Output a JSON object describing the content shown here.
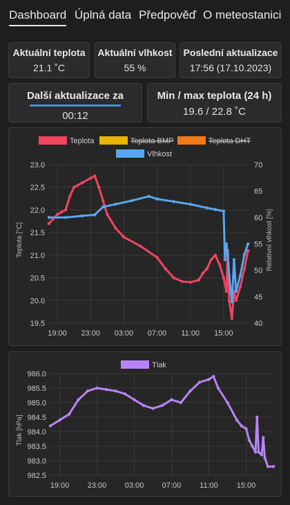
{
  "nav": {
    "tabs": [
      {
        "label": "Dashboard",
        "active": true
      },
      {
        "label": "Úplná data",
        "active": false
      },
      {
        "label": "Předpověď",
        "active": false
      },
      {
        "label": "O meteostanici",
        "active": false
      }
    ]
  },
  "cards": {
    "temp": {
      "title": "Aktuální teplota",
      "value": "21.1 ˚C"
    },
    "humidity": {
      "title": "Aktuální vlhkost",
      "value": "55 %"
    },
    "last_update": {
      "title": "Poslední aktualizace",
      "value": "17:56 (17.10.2023)"
    },
    "next_update": {
      "title": "Další aktualizace za",
      "value": "00:12",
      "progress": 1.0
    },
    "minmax": {
      "title": "Min / max teplota (24 h)",
      "value": "19.6 / 22.8 ˚C"
    }
  },
  "colors": {
    "teplota": "#f0455f",
    "teplota_bmp": "#e8b600",
    "teplota_dht": "#f07a1a",
    "vlhkost": "#5aa5f0",
    "tlak": "#b884f5",
    "progress": "#4a8fe0"
  },
  "chart_data": [
    {
      "type": "line",
      "legend": [
        {
          "name": "Teplota",
          "hidden": false
        },
        {
          "name": "Teplota BMP",
          "hidden": true
        },
        {
          "name": "Teplota DHT",
          "hidden": true
        },
        {
          "name": "Vlhkost",
          "hidden": false
        }
      ],
      "xticks": [
        "19:00",
        "23:00",
        "03:00",
        "07:00",
        "11:00",
        "15:00"
      ],
      "xlim": [
        "2023-10-16 18:00",
        "2023-10-17 18:00"
      ],
      "xtick_start": "2023-10-16 19:00",
      "xtick_step_hours": 4,
      "ylabel": "Teplota [°C]",
      "ylim": [
        19.5,
        23.0
      ],
      "yticks": [
        "19.5",
        "20.0",
        "20.5",
        "21.0",
        "21.5",
        "22.0",
        "22.5",
        "23.0"
      ],
      "y2label": "Relativní vlhkost [%]",
      "y2lim": [
        40,
        70
      ],
      "y2ticks": [
        "40",
        "45",
        "50",
        "55",
        "60",
        "65",
        "70"
      ],
      "grid": true,
      "legend_position": "top",
      "series": [
        {
          "name": "Teplota",
          "axis": "y",
          "points": [
            [
              "2023-10-16 18:00",
              21.7
            ],
            [
              "2023-10-16 18:30",
              21.8
            ],
            [
              "2023-10-16 19:00",
              21.9
            ],
            [
              "2023-10-16 19:30",
              21.95
            ],
            [
              "2023-10-16 20:00",
              22.0
            ],
            [
              "2023-10-16 20:30",
              22.3
            ],
            [
              "2023-10-16 21:00",
              22.5
            ],
            [
              "2023-10-16 22:00",
              22.6
            ],
            [
              "2023-10-16 23:00",
              22.7
            ],
            [
              "2023-10-16 23:30",
              22.75
            ],
            [
              "2023-10-17 00:00",
              22.5
            ],
            [
              "2023-10-17 00:30",
              22.2
            ],
            [
              "2023-10-17 01:00",
              21.9
            ],
            [
              "2023-10-17 02:00",
              21.6
            ],
            [
              "2023-10-17 03:00",
              21.4
            ],
            [
              "2023-10-17 05:00",
              21.2
            ],
            [
              "2023-10-17 07:00",
              20.95
            ],
            [
              "2023-10-17 08:00",
              20.7
            ],
            [
              "2023-10-17 09:00",
              20.5
            ],
            [
              "2023-10-17 10:00",
              20.42
            ],
            [
              "2023-10-17 11:00",
              20.4
            ],
            [
              "2023-10-17 12:00",
              20.45
            ],
            [
              "2023-10-17 12:30",
              20.6
            ],
            [
              "2023-10-17 13:00",
              20.7
            ],
            [
              "2023-10-17 13:30",
              20.9
            ],
            [
              "2023-10-17 14:00",
              21.0
            ],
            [
              "2023-10-17 14:30",
              20.8
            ],
            [
              "2023-10-17 15:00",
              20.5
            ],
            [
              "2023-10-17 15:20",
              20.2
            ],
            [
              "2023-10-17 15:30",
              21.1
            ],
            [
              "2023-10-17 15:40",
              20.0
            ],
            [
              "2023-10-17 16:00",
              19.6
            ],
            [
              "2023-10-17 16:15",
              20.2
            ],
            [
              "2023-10-17 16:30",
              20.0
            ],
            [
              "2023-10-17 17:00",
              20.3
            ],
            [
              "2023-10-17 17:30",
              20.7
            ],
            [
              "2023-10-17 17:56",
              21.1
            ]
          ]
        },
        {
          "name": "Vlhkost",
          "axis": "y2",
          "points": [
            [
              "2023-10-16 18:00",
              60.0
            ],
            [
              "2023-10-16 20:00",
              60.0
            ],
            [
              "2023-10-16 22:00",
              60.3
            ],
            [
              "2023-10-16 23:30",
              60.5
            ],
            [
              "2023-10-17 00:30",
              62.0
            ],
            [
              "2023-10-17 02:00",
              62.5
            ],
            [
              "2023-10-17 04:00",
              63.2
            ],
            [
              "2023-10-17 06:00",
              64.0
            ],
            [
              "2023-10-17 07:00",
              63.5
            ],
            [
              "2023-10-17 09:00",
              63.0
            ],
            [
              "2023-10-17 11:00",
              62.5
            ],
            [
              "2023-10-17 13:00",
              61.8
            ],
            [
              "2023-10-17 14:00",
              61.5
            ],
            [
              "2023-10-17 15:00",
              61.2
            ],
            [
              "2023-10-17 15:10",
              52.0
            ],
            [
              "2023-10-17 15:20",
              55.0
            ],
            [
              "2023-10-17 15:30",
              53.0
            ],
            [
              "2023-10-17 15:40",
              49.0
            ],
            [
              "2023-10-17 16:00",
              44.0
            ],
            [
              "2023-10-17 16:15",
              52.0
            ],
            [
              "2023-10-17 16:30",
              46.0
            ],
            [
              "2023-10-17 17:00",
              49.0
            ],
            [
              "2023-10-17 17:30",
              53.0
            ],
            [
              "2023-10-17 17:56",
              55.0
            ]
          ]
        }
      ]
    },
    {
      "type": "line",
      "legend": [
        {
          "name": "Tlak",
          "hidden": false
        }
      ],
      "xticks": [
        "19:00",
        "23:00",
        "03:00",
        "07:00",
        "11:00",
        "15:00"
      ],
      "xlim": [
        "2023-10-16 18:00",
        "2023-10-17 18:00"
      ],
      "xtick_start": "2023-10-16 19:00",
      "xtick_step_hours": 4,
      "ylabel": "Tlak [hPa]",
      "ylim": [
        982.5,
        986.0
      ],
      "yticks": [
        "982.5",
        "983.0",
        "983.5",
        "984.0",
        "984.5",
        "985.0",
        "985.5",
        "986.0"
      ],
      "grid": true,
      "legend_position": "top",
      "series": [
        {
          "name": "Tlak",
          "axis": "y",
          "points": [
            [
              "2023-10-16 18:00",
              984.2
            ],
            [
              "2023-10-16 19:00",
              984.4
            ],
            [
              "2023-10-16 20:00",
              984.6
            ],
            [
              "2023-10-16 21:00",
              985.1
            ],
            [
              "2023-10-16 22:00",
              985.4
            ],
            [
              "2023-10-16 23:00",
              985.5
            ],
            [
              "2023-10-17 00:00",
              985.45
            ],
            [
              "2023-10-17 01:00",
              985.4
            ],
            [
              "2023-10-17 02:00",
              985.3
            ],
            [
              "2023-10-17 03:00",
              985.1
            ],
            [
              "2023-10-17 04:00",
              984.9
            ],
            [
              "2023-10-17 05:00",
              984.8
            ],
            [
              "2023-10-17 06:00",
              984.9
            ],
            [
              "2023-10-17 07:00",
              985.1
            ],
            [
              "2023-10-17 08:00",
              985.0
            ],
            [
              "2023-10-17 09:00",
              985.4
            ],
            [
              "2023-10-17 10:00",
              985.7
            ],
            [
              "2023-10-17 11:00",
              985.8
            ],
            [
              "2023-10-17 11:30",
              985.9
            ],
            [
              "2023-10-17 12:00",
              985.5
            ],
            [
              "2023-10-17 13:00",
              985.0
            ],
            [
              "2023-10-17 14:00",
              984.4
            ],
            [
              "2023-10-17 14:30",
              984.2
            ],
            [
              "2023-10-17 15:00",
              984.1
            ],
            [
              "2023-10-17 15:20",
              983.7
            ],
            [
              "2023-10-17 15:40",
              983.5
            ],
            [
              "2023-10-17 16:00",
              983.3
            ],
            [
              "2023-10-17 16:10",
              984.5
            ],
            [
              "2023-10-17 16:20",
              983.3
            ],
            [
              "2023-10-17 16:40",
              983.2
            ],
            [
              "2023-10-17 16:50",
              983.8
            ],
            [
              "2023-10-17 17:00",
              983.1
            ],
            [
              "2023-10-17 17:20",
              982.8
            ],
            [
              "2023-10-17 17:56",
              982.8
            ]
          ]
        }
      ]
    }
  ]
}
